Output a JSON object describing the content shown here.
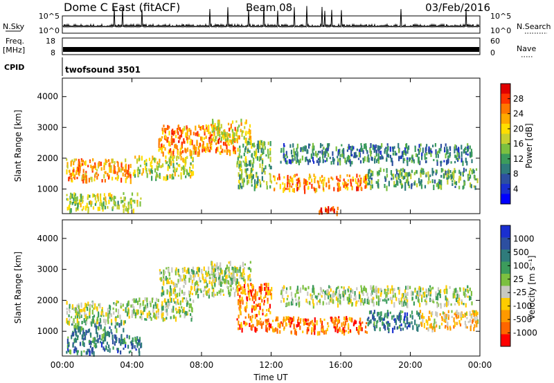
{
  "header": {
    "station": "Dome C East (fitACF)",
    "beam": "Beam 08",
    "date": "03/Feb/2016"
  },
  "top_panels": {
    "nsky_label": "N.Sky",
    "nsky_ticks": [
      "10^5",
      "10^0"
    ],
    "nsearch_label": "N.Search",
    "nsearch_ticks": [
      "10^5",
      "10^0"
    ],
    "freq_label": "Freq.",
    "freq_unit": "[MHz]",
    "freq_ticks": [
      "18",
      "8"
    ],
    "nave_label": "Nave",
    "nave_ticks": [
      "60",
      "0"
    ],
    "cpid_label": "CPID",
    "cpid_value": "twofsound 3501"
  },
  "chart_data": [
    {
      "type": "heatmap",
      "panel": "power",
      "ylabel": "Slant Range [km]",
      "ylim": [
        200,
        4600
      ],
      "yticks": [
        1000,
        2000,
        3000,
        4000
      ],
      "xlim": [
        0,
        24
      ],
      "xtick_labels": [
        "00:00",
        "04:00",
        "08:00",
        "12:00",
        "16:00",
        "20:00",
        "00:00"
      ],
      "colorbar": {
        "label": "Power [dB]",
        "ticks": [
          "28",
          "24",
          "20",
          "16",
          "12",
          "8",
          "4"
        ],
        "colors": [
          "#e00000",
          "#ff3300",
          "#ff7700",
          "#ffaa00",
          "#ffdd00",
          "#c8d030",
          "#7cc040",
          "#3c9c5c",
          "#2f7b7b",
          "#2d4fa0",
          "#1a2fd0",
          "#0000ff"
        ]
      },
      "bands": [
        {
          "t": [
            0.2,
            4.0
          ],
          "r": [
            1300,
            2000
          ],
          "level": 0.7
        },
        {
          "t": [
            4.0,
            7.5
          ],
          "r": [
            1400,
            2100
          ],
          "level": 0.55
        },
        {
          "t": [
            5.5,
            10.0
          ],
          "r": [
            2200,
            3100
          ],
          "level": 0.75
        },
        {
          "t": [
            8.5,
            10.8
          ],
          "r": [
            2600,
            3300
          ],
          "level": 0.6
        },
        {
          "t": [
            10.0,
            12.0
          ],
          "r": [
            1100,
            2600
          ],
          "level": 0.45
        },
        {
          "t": [
            12.0,
            17.5
          ],
          "r": [
            1000,
            1500
          ],
          "level": 0.75
        },
        {
          "t": [
            17.5,
            23.9
          ],
          "r": [
            1100,
            1700
          ],
          "level": 0.4
        },
        {
          "t": [
            12.5,
            23.5
          ],
          "r": [
            1900,
            2500
          ],
          "level": 0.3
        },
        {
          "t": [
            0.2,
            4.5
          ],
          "r": [
            350,
            900
          ],
          "level": 0.5
        },
        {
          "t": [
            14.5,
            16.0
          ],
          "r": [
            250,
            450
          ],
          "level": 0.9
        }
      ]
    },
    {
      "type": "heatmap",
      "panel": "velocity",
      "ylabel": "Slant Range [km]",
      "ylim": [
        200,
        4600
      ],
      "yticks": [
        1000,
        2000,
        3000,
        4000
      ],
      "xlim": [
        0,
        24
      ],
      "xtick_labels": [
        "00:00",
        "04:00",
        "08:00",
        "12:00",
        "16:00",
        "20:00",
        "00:00"
      ],
      "xlabel": "Time UT",
      "colorbar": {
        "label": "Velocity [m s⁻¹]",
        "ticks": [
          "1000",
          "500",
          "100",
          "25",
          "-25",
          "-100",
          "-500",
          "-1000"
        ],
        "colors": [
          "#1a2fd0",
          "#2d4fa0",
          "#2f7b7b",
          "#3c9c5c",
          "#7cc040",
          "#c8c8c0",
          "#ffcc00",
          "#ff9900",
          "#ff6600",
          "#ff0000"
        ]
      },
      "bands": [
        {
          "t": [
            0.2,
            4.0
          ],
          "r": [
            1300,
            2000
          ],
          "level": 0.5
        },
        {
          "t": [
            4.0,
            7.5
          ],
          "r": [
            1400,
            2100
          ],
          "level": 0.5
        },
        {
          "t": [
            5.5,
            10.0
          ],
          "r": [
            2200,
            3100
          ],
          "level": 0.5
        },
        {
          "t": [
            8.5,
            10.8
          ],
          "r": [
            2600,
            3300
          ],
          "level": 0.5
        },
        {
          "t": [
            10.0,
            12.0
          ],
          "r": [
            1100,
            2600
          ],
          "level": 0.2
        },
        {
          "t": [
            12.0,
            17.5
          ],
          "r": [
            1000,
            1500
          ],
          "level": 0.2
        },
        {
          "t": [
            17.5,
            20.5
          ],
          "r": [
            1100,
            1700
          ],
          "level": 0.75
        },
        {
          "t": [
            20.5,
            23.9
          ],
          "r": [
            1100,
            1700
          ],
          "level": 0.35
        },
        {
          "t": [
            12.5,
            23.5
          ],
          "r": [
            1900,
            2500
          ],
          "level": 0.5
        },
        {
          "t": [
            0.2,
            4.5
          ],
          "r": [
            350,
            900
          ],
          "level": 0.75
        },
        {
          "t": [
            0.5,
            3.5
          ],
          "r": [
            900,
            1300
          ],
          "level": 0.7
        }
      ]
    }
  ]
}
